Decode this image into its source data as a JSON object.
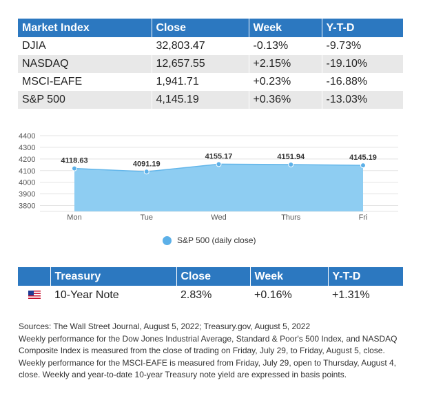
{
  "market_table": {
    "headers": [
      "Market Index",
      "Close",
      "Week",
      "Y-T-D"
    ],
    "rows": [
      [
        "DJIA",
        "32,803.47",
        "-0.13%",
        "-9.73%"
      ],
      [
        "NASDAQ",
        "12,657.55",
        "+2.15%",
        "-19.10%"
      ],
      [
        "MSCI-EAFE",
        "1,941.71",
        "+0.23%",
        "-16.88%"
      ],
      [
        "S&P 500",
        "4,145.19",
        "+0.36%",
        "-13.03%"
      ]
    ]
  },
  "chart_data": {
    "type": "area",
    "categories": [
      "Mon",
      "Tue",
      "Wed",
      "Thurs",
      "Fri"
    ],
    "series": [
      {
        "name": "S&P 500 (daily close)",
        "values": [
          4118.63,
          4091.19,
          4155.17,
          4151.94,
          4145.19
        ]
      }
    ],
    "data_labels": [
      "4118.63",
      "4091.19",
      "4155.17",
      "4151.94",
      "4145.19"
    ],
    "y_ticks": [
      4400,
      4300,
      4200,
      4100,
      4000,
      3900,
      3800
    ],
    "ylim": [
      3750,
      4400
    ],
    "grid": true,
    "legend_position": "bottom",
    "colors": {
      "fill": "#8ecdf2",
      "line": "#63b6ea",
      "marker": "#5cb0e8",
      "grid": "#e3e3e3"
    }
  },
  "treasury_table": {
    "headers": [
      "",
      "Treasury",
      "Close",
      "Week",
      "Y-T-D"
    ],
    "row": {
      "flag_icon": "us-flag-icon",
      "name": "10-Year Note",
      "close": "2.83%",
      "week": "+0.16%",
      "ytd": "+1.31%"
    }
  },
  "sources": {
    "line1": "Sources: The Wall Street Journal, August 5, 2022; Treasury.gov, August 5, 2022",
    "line2": "Weekly performance for the Dow Jones Industrial Average, Standard & Poor's 500 Index, and NASDAQ Composite Index is measured from the close of trading on Friday, July 29, to Friday, August 5, close. Weekly performance for the MSCI-EAFE is measured from Friday, July 29, open to Thursday, August 4, close. Weekly and year-to-date 10-year Treasury note yield are expressed in basis points."
  },
  "colors": {
    "header_bg": "#2c78c0",
    "row_alt_bg": "#e8e8e8"
  }
}
